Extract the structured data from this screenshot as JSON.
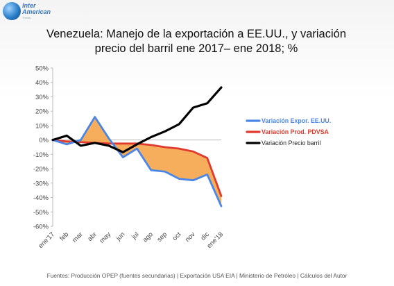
{
  "logo": {
    "text": "Inter American",
    "tagline": "Trends"
  },
  "chart_data": {
    "type": "line",
    "title_line1": "Venezuela: Manejo de la exportación a EE.UU., y variación",
    "title_line2": "precio del barril ene 2017– ene 2018; %",
    "categories": [
      "ene'17",
      "feb",
      "mar",
      "abr",
      "may",
      "jun",
      "jul",
      "ago",
      "sep",
      "oct",
      "nov",
      "dic",
      "ene'18"
    ],
    "y_ticks": [
      "50%",
      "40%",
      "30%",
      "20%",
      "10%",
      "0%",
      "-10%",
      "-20%",
      "-30%",
      "-40%",
      "-50%",
      "-60%"
    ],
    "ylim": [
      -60,
      50
    ],
    "grid": false,
    "legend_position": "right",
    "fill_between": {
      "series_a": 0,
      "series_b": 1,
      "color": "#f5a54a"
    },
    "series": [
      {
        "name": "Variación Expor. EE.UU.",
        "color": "#4a86e8",
        "values": [
          0,
          -3,
          0,
          16,
          1,
          -12,
          -6,
          -21,
          -22,
          -27,
          -28,
          -24,
          -46
        ]
      },
      {
        "name": "Variación Prod. PDVSA",
        "color": "#e03a2f",
        "values": [
          0,
          -1,
          -1.5,
          -2,
          -2.5,
          -2.5,
          -2.5,
          -3.5,
          -5,
          -6,
          -8,
          -12.5,
          -39
        ]
      },
      {
        "name": "Variación Precio barril",
        "color": "#000000",
        "values": [
          0,
          3,
          -4,
          -2,
          -4,
          -8.5,
          -3,
          2,
          6,
          11,
          22.5,
          25.5,
          36.5
        ]
      }
    ]
  },
  "footer": "Fuentes: Producción OPEP (fuentes secundarias) | Exportación USA EIA | Ministerio de Petróleo | Cálculos del Autor"
}
